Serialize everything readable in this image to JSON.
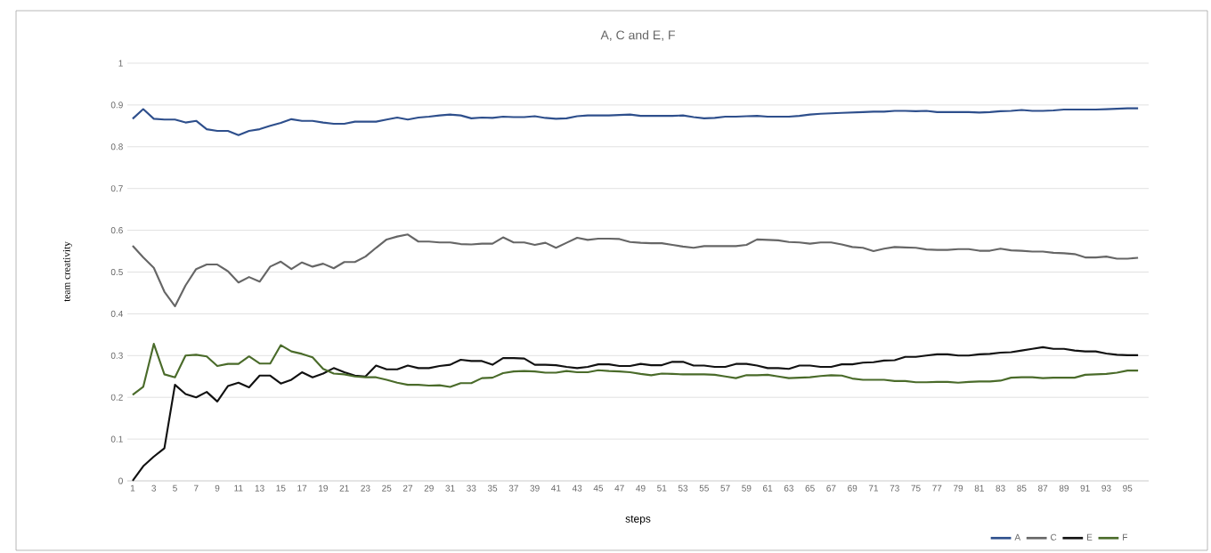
{
  "chart_data": {
    "type": "line",
    "title": "A, C and E, F",
    "xlabel": "steps",
    "ylabel": "team creativity",
    "categories": [
      "1",
      null,
      "3",
      null,
      "5",
      null,
      "7",
      null,
      "9",
      null,
      "11",
      null,
      "13",
      null,
      "15",
      null,
      "17",
      null,
      "19",
      null,
      "21",
      null,
      "23",
      null,
      "25",
      null,
      "27",
      null,
      "29",
      null,
      "31",
      null,
      "33",
      null,
      "35",
      null,
      "37",
      null,
      "39",
      null,
      "41",
      null,
      "43",
      null,
      "45",
      null,
      "47",
      null,
      "49",
      null,
      "51",
      null,
      "53",
      null,
      "55",
      null,
      "57",
      null,
      "59",
      null,
      "61",
      null,
      "63",
      null,
      "65",
      null,
      "67",
      null,
      "69",
      null,
      "71",
      null,
      "73",
      null,
      "75",
      null,
      "77",
      null,
      "79",
      null,
      "81",
      null,
      "83",
      null,
      "85",
      null,
      "87",
      null,
      "89",
      null,
      "91",
      null,
      "93",
      null,
      "95",
      null
    ],
    "series": [
      {
        "name": "A",
        "color": "#2e4f8c",
        "values": [
          0.867,
          0.89,
          0.867,
          0.865,
          0.865,
          0.858,
          0.862,
          0.842,
          0.838,
          0.838,
          0.828,
          0.838,
          0.842,
          0.85,
          0.857,
          0.866,
          0.862,
          0.862,
          0.858,
          0.855,
          0.855,
          0.86,
          0.86,
          0.86,
          0.865,
          0.87,
          0.865,
          0.87,
          0.872,
          0.875,
          0.877,
          0.875,
          0.868,
          0.87,
          0.869,
          0.872,
          0.871,
          0.871,
          0.873,
          0.869,
          0.867,
          0.868,
          0.873,
          0.875,
          0.875,
          0.875,
          0.876,
          0.877,
          0.874,
          0.874,
          0.874,
          0.874,
          0.875,
          0.871,
          0.868,
          0.869,
          0.872,
          0.872,
          0.873,
          0.874,
          0.872,
          0.872,
          0.872,
          0.874,
          0.877,
          0.879,
          0.88,
          0.881,
          0.882,
          0.883,
          0.884,
          0.884,
          0.886,
          0.886,
          0.885,
          0.886,
          0.883,
          0.883,
          0.883,
          0.883,
          0.882,
          0.883,
          0.885,
          0.886,
          0.888,
          0.886,
          0.886,
          0.887,
          0.889,
          0.889,
          0.889,
          0.889,
          0.89,
          0.891,
          0.892,
          0.892
        ]
      },
      {
        "name": "C",
        "color": "#666666",
        "values": [
          0.563,
          0.535,
          0.51,
          0.453,
          0.418,
          0.468,
          0.507,
          0.518,
          0.518,
          0.502,
          0.475,
          0.488,
          0.477,
          0.513,
          0.525,
          0.507,
          0.523,
          0.513,
          0.52,
          0.509,
          0.524,
          0.524,
          0.537,
          0.558,
          0.578,
          0.585,
          0.59,
          0.573,
          0.573,
          0.571,
          0.571,
          0.567,
          0.566,
          0.568,
          0.568,
          0.583,
          0.571,
          0.571,
          0.565,
          0.57,
          0.558,
          0.57,
          0.582,
          0.577,
          0.58,
          0.58,
          0.579,
          0.572,
          0.57,
          0.569,
          0.569,
          0.565,
          0.561,
          0.558,
          0.562,
          0.562,
          0.562,
          0.562,
          0.565,
          0.578,
          0.577,
          0.576,
          0.572,
          0.571,
          0.568,
          0.571,
          0.571,
          0.566,
          0.56,
          0.558,
          0.55,
          0.556,
          0.56,
          0.559,
          0.558,
          0.554,
          0.553,
          0.553,
          0.555,
          0.555,
          0.551,
          0.551,
          0.556,
          0.552,
          0.551,
          0.549,
          0.549,
          0.546,
          0.545,
          0.543,
          0.535,
          0.535,
          0.537,
          0.532,
          0.532,
          0.534
        ]
      },
      {
        "name": "E",
        "color": "#111111",
        "values": [
          0.0,
          0.035,
          0.058,
          0.078,
          0.23,
          0.208,
          0.2,
          0.213,
          0.19,
          0.227,
          0.235,
          0.224,
          0.252,
          0.252,
          0.233,
          0.242,
          0.26,
          0.248,
          0.257,
          0.27,
          0.26,
          0.252,
          0.25,
          0.276,
          0.267,
          0.267,
          0.276,
          0.27,
          0.27,
          0.275,
          0.278,
          0.29,
          0.287,
          0.287,
          0.278,
          0.294,
          0.294,
          0.293,
          0.278,
          0.278,
          0.277,
          0.273,
          0.27,
          0.273,
          0.279,
          0.279,
          0.275,
          0.275,
          0.28,
          0.277,
          0.277,
          0.285,
          0.285,
          0.276,
          0.276,
          0.273,
          0.273,
          0.28,
          0.28,
          0.276,
          0.27,
          0.27,
          0.268,
          0.276,
          0.276,
          0.273,
          0.273,
          0.279,
          0.279,
          0.283,
          0.284,
          0.288,
          0.289,
          0.297,
          0.297,
          0.3,
          0.303,
          0.303,
          0.3,
          0.3,
          0.303,
          0.304,
          0.307,
          0.308,
          0.312,
          0.316,
          0.32,
          0.316,
          0.316,
          0.312,
          0.31,
          0.31,
          0.305,
          0.302,
          0.301,
          0.301
        ]
      },
      {
        "name": "F",
        "color": "#4a6b2a",
        "values": [
          0.206,
          0.225,
          0.328,
          0.255,
          0.248,
          0.3,
          0.302,
          0.298,
          0.275,
          0.28,
          0.28,
          0.298,
          0.281,
          0.281,
          0.325,
          0.31,
          0.304,
          0.296,
          0.268,
          0.257,
          0.255,
          0.25,
          0.248,
          0.248,
          0.242,
          0.235,
          0.23,
          0.23,
          0.228,
          0.229,
          0.225,
          0.234,
          0.234,
          0.246,
          0.247,
          0.258,
          0.262,
          0.263,
          0.262,
          0.259,
          0.259,
          0.263,
          0.26,
          0.26,
          0.265,
          0.263,
          0.262,
          0.26,
          0.256,
          0.253,
          0.257,
          0.256,
          0.255,
          0.255,
          0.255,
          0.254,
          0.25,
          0.246,
          0.253,
          0.253,
          0.254,
          0.25,
          0.246,
          0.247,
          0.248,
          0.251,
          0.253,
          0.252,
          0.245,
          0.242,
          0.242,
          0.242,
          0.239,
          0.239,
          0.236,
          0.236,
          0.237,
          0.237,
          0.235,
          0.237,
          0.238,
          0.238,
          0.24,
          0.247,
          0.248,
          0.248,
          0.246,
          0.247,
          0.247,
          0.247,
          0.254,
          0.255,
          0.256,
          0.259,
          0.264,
          0.264
        ]
      }
    ],
    "ylim": [
      0,
      1
    ],
    "yticks": [
      0,
      0.1,
      0.2,
      0.3,
      0.4,
      0.5,
      0.6,
      0.7,
      0.8,
      0.9,
      1
    ],
    "grid": "y",
    "legend": "bottom right"
  }
}
